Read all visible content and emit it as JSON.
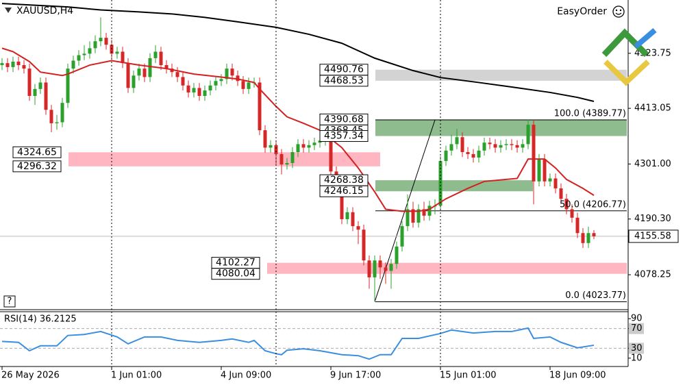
{
  "chart_data": [
    {
      "type": "candlestick",
      "title": "XAUUSD,H4",
      "categories": [
        "26 May 2026",
        null,
        null,
        null,
        null,
        null,
        null,
        null,
        null,
        null,
        null,
        null,
        null,
        null,
        null,
        null,
        null,
        null,
        null,
        null,
        "1 Jun 01:00",
        null,
        null,
        null,
        null,
        null,
        null,
        null,
        null,
        null,
        null,
        null,
        null,
        null,
        null,
        null,
        null,
        null,
        null,
        null,
        "4 Jun 09:00",
        null,
        null,
        null,
        null,
        null,
        null,
        null,
        null,
        null,
        null,
        null,
        null,
        null,
        null,
        null,
        null,
        null,
        null,
        null,
        "9 Jun 17:00",
        null,
        null,
        null,
        null,
        null,
        null,
        null,
        null,
        null,
        null,
        null,
        null,
        null,
        null,
        null,
        null,
        null,
        null,
        null,
        "15 Jun 01:00",
        null,
        null,
        null,
        null,
        null,
        null,
        null,
        null,
        null,
        null,
        null,
        null,
        null,
        null,
        null,
        null,
        null,
        null,
        null,
        "18 Jun 09:00",
        null,
        null,
        null,
        null,
        null,
        null,
        null,
        null
      ],
      "open": [
        4500,
        4504,
        4496,
        4507,
        4500,
        4493,
        4438,
        4452,
        4465,
        4410,
        4383,
        4385,
        4424,
        4493,
        4509,
        4520,
        4523,
        4534,
        4548,
        4555,
        4541,
        4523,
        4527,
        4504,
        4454,
        4479,
        4493,
        4476,
        4514,
        4527,
        4500,
        4493,
        4486,
        4476,
        4459,
        4445,
        4454,
        4438,
        4449,
        4459,
        4468,
        4472,
        4493,
        4479,
        4468,
        4452,
        4465,
        4465,
        4369,
        4334,
        4339,
        4321,
        4300,
        4303,
        4325,
        4341,
        4334,
        4339,
        4344,
        4348,
        4355,
        4286,
        4245,
        4190,
        4204,
        4176,
        4169,
        4107,
        4073,
        4107,
        4093,
        4086,
        4100,
        4135,
        4176,
        4210,
        4183,
        4210,
        4197,
        4217,
        4217,
        4307,
        4328,
        4341,
        4355,
        4325,
        4321,
        4314,
        4328,
        4344,
        4341,
        4334,
        4339,
        4341,
        4339,
        4334,
        4341,
        4380,
        4266,
        4311,
        4266,
        4272,
        4252,
        4231,
        4210,
        4193,
        4162,
        4142,
        4162
      ],
      "high": [
        4514,
        4514,
        4517,
        4517,
        4510,
        4503,
        4462,
        4475,
        4475,
        4420,
        4400,
        4434,
        4503,
        4519,
        4530,
        4540,
        4548,
        4560,
        4596,
        4565,
        4551,
        4537,
        4537,
        4514,
        4489,
        4503,
        4503,
        4524,
        4540,
        4537,
        4510,
        4503,
        4496,
        4486,
        4469,
        4464,
        4464,
        4459,
        4469,
        4478,
        4482,
        4503,
        4503,
        4489,
        4478,
        4475,
        4475,
        4475,
        4379,
        4349,
        4349,
        4331,
        4313,
        4335,
        4351,
        4351,
        4349,
        4354,
        4358,
        4365,
        4365,
        4296,
        4255,
        4214,
        4214,
        4186,
        4179,
        4117,
        4117,
        4117,
        4103,
        4110,
        4145,
        4186,
        4240,
        4225,
        4220,
        4225,
        4227,
        4230,
        4317,
        4338,
        4360,
        4372,
        4365,
        4335,
        4331,
        4338,
        4354,
        4354,
        4351,
        4349,
        4351,
        4351,
        4349,
        4351,
        4390,
        4390,
        4321,
        4321,
        4282,
        4282,
        4262,
        4241,
        4220,
        4203,
        4172,
        4175,
        4168
      ],
      "low": [
        4490,
        4486,
        4486,
        4490,
        4483,
        4428,
        4420,
        4442,
        4400,
        4365,
        4370,
        4375,
        4414,
        4483,
        4499,
        4510,
        4513,
        4524,
        4538,
        4531,
        4513,
        4513,
        4494,
        4444,
        4444,
        4469,
        4466,
        4466,
        4504,
        4490,
        4483,
        4476,
        4466,
        4449,
        4435,
        4435,
        4428,
        4428,
        4439,
        4449,
        4458,
        4462,
        4469,
        4458,
        4442,
        4442,
        4455,
        4359,
        4324,
        4324,
        4300,
        4280,
        4290,
        4293,
        4315,
        4324,
        4324,
        4329,
        4334,
        4338,
        4276,
        4235,
        4180,
        4180,
        4166,
        4140,
        4097,
        4050,
        4024,
        4070,
        4060,
        4050,
        4090,
        4125,
        4166,
        4173,
        4173,
        4187,
        4187,
        4200,
        4207,
        4297,
        4318,
        4331,
        4315,
        4311,
        4304,
        4304,
        4318,
        4331,
        4324,
        4324,
        4329,
        4329,
        4324,
        4324,
        4331,
        4220,
        4256,
        4256,
        4256,
        4242,
        4221,
        4200,
        4183,
        4152,
        4132,
        4132,
        4150
      ],
      "close": [
        4504,
        4496,
        4507,
        4500,
        4493,
        4438,
        4452,
        4465,
        4410,
        4383,
        4385,
        4424,
        4493,
        4509,
        4520,
        4523,
        4534,
        4548,
        4555,
        4541,
        4523,
        4527,
        4504,
        4454,
        4479,
        4493,
        4476,
        4514,
        4527,
        4500,
        4493,
        4486,
        4476,
        4459,
        4445,
        4454,
        4438,
        4449,
        4459,
        4468,
        4472,
        4493,
        4479,
        4468,
        4452,
        4465,
        4465,
        4369,
        4334,
        4339,
        4321,
        4300,
        4303,
        4325,
        4341,
        4334,
        4339,
        4344,
        4348,
        4355,
        4286,
        4245,
        4190,
        4204,
        4176,
        4169,
        4107,
        4073,
        4107,
        4093,
        4086,
        4100,
        4135,
        4176,
        4210,
        4183,
        4210,
        4197,
        4217,
        4217,
        4307,
        4328,
        4341,
        4355,
        4325,
        4321,
        4314,
        4328,
        4344,
        4341,
        4334,
        4339,
        4341,
        4339,
        4334,
        4341,
        4380,
        4266,
        4311,
        4266,
        4272,
        4252,
        4231,
        4210,
        4193,
        4162,
        4142,
        4162,
        4155.58
      ],
      "up_color": "#2ca02c",
      "down_color": "#d62728",
      "series": [
        {
          "color": "#d42020",
          "x": [
            0,
            2,
            5,
            7,
            11,
            12,
            16,
            20,
            25,
            30,
            35,
            40,
            43,
            46,
            47,
            50,
            52,
            55,
            58,
            62,
            65,
            68,
            70,
            73,
            76,
            78,
            81,
            85,
            88,
            92,
            94,
            96,
            99,
            101,
            103,
            106,
            108
          ],
          "values": [
            4534,
            4527,
            4507,
            4486,
            4479,
            4482,
            4500,
            4509,
            4500,
            4493,
            4482,
            4476,
            4472,
            4465,
            4452,
            4417,
            4396,
            4383,
            4369,
            4334,
            4293,
            4245,
            4210,
            4206,
            4206,
            4210,
            4231,
            4252,
            4266,
            4270,
            4272,
            4311,
            4311,
            4293,
            4270,
            4252,
            4238
          ]
        },
        {
          "color": "#000000",
          "x": [
            0,
            12,
            18,
            25,
            31,
            37,
            43,
            50,
            56,
            62,
            68,
            75,
            80,
            87,
            93,
            100,
            105,
            108
          ],
          "values": [
            4624,
            4617,
            4611,
            4607,
            4603,
            4596,
            4587,
            4576,
            4562,
            4544,
            4514,
            4489,
            4475,
            4465,
            4456,
            4445,
            4435,
            4427
          ]
        }
      ],
      "zones": [
        {
          "levels": [
            4490.76,
            4468.53
          ],
          "color": "#d3d3d3"
        },
        {
          "levels": [
            4390.68,
            4368.45,
            4357.34
          ],
          "color": "#8fbc8f"
        },
        {
          "levels": [
            4324.65,
            4296.32
          ],
          "color": "#ffb6c1"
        },
        {
          "levels": [
            4268.38,
            4246.15
          ],
          "color": "#8fbc8f"
        },
        {
          "levels": [
            4102.27,
            4080.04
          ],
          "color": "#ffb6c1"
        }
      ],
      "fib": [
        {
          "value": 4389.77,
          "label": "100.0 (4389.77)"
        },
        {
          "value": 4206.77,
          "label": "50.0 (4206.77)"
        },
        {
          "value": 4023.77,
          "label": "0.0 (4023.77)"
        }
      ],
      "last_price": 4155.58,
      "ylim": [
        4008,
        4631
      ],
      "yticks": [
        4523.75,
        4413.05,
        {
          "value": 4301,
          "label": "4301.00"
        },
        {
          "value": 4190.3,
          "label": "4190.30"
        },
        4078.25
      ]
    },
    {
      "type": "line",
      "title": "RSI(14) 36.2125",
      "color": "#3a8ee0",
      "x": [
        0,
        3,
        5,
        7,
        10,
        12,
        15,
        18,
        21,
        23,
        26,
        29,
        32,
        36,
        40,
        42,
        45,
        46,
        48,
        50,
        51,
        52,
        55,
        58,
        62,
        65,
        67,
        69,
        71,
        73,
        76,
        80,
        82,
        86,
        90,
        93,
        96,
        97,
        100,
        102,
        105,
        108
      ],
      "values": [
        44,
        42,
        25,
        35,
        35,
        56,
        58,
        64,
        53,
        39,
        53,
        53,
        46,
        42,
        46,
        49,
        42,
        46,
        25,
        19,
        17,
        26,
        29,
        25,
        17,
        15,
        8,
        17,
        17,
        50,
        50,
        60,
        67,
        61,
        64,
        64,
        71,
        50,
        53,
        42,
        31,
        36.2125
      ],
      "ylim": [
        0,
        100
      ],
      "yticks": [
        90,
        70,
        30,
        10
      ],
      "levels": [
        70,
        30
      ]
    }
  ],
  "ui": {
    "easy_order": "EasyOrder",
    "help": "?"
  }
}
